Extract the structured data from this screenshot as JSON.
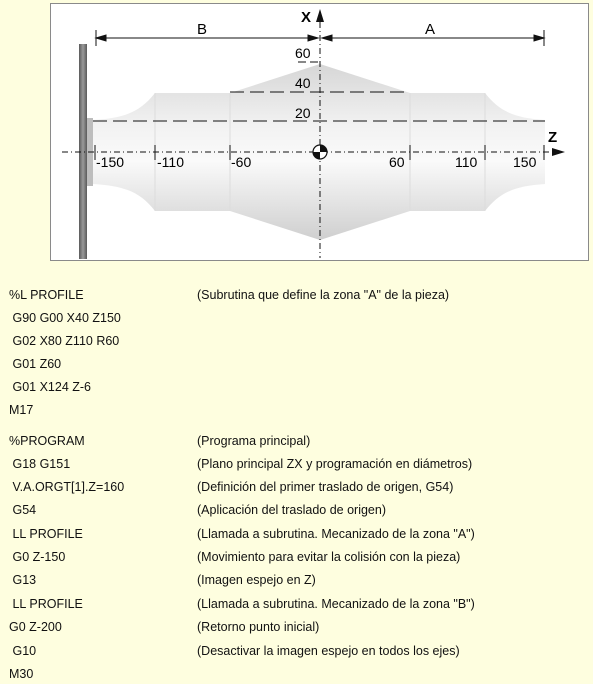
{
  "figure": {
    "zone_b_label": "B",
    "zone_a_label": "A",
    "x_axis_label": "X",
    "z_axis_label": "Z",
    "x_ticks": [
      "60",
      "40",
      "20"
    ],
    "z_ticks": [
      "-150",
      "-110",
      "-60",
      "60",
      "110",
      "150"
    ]
  },
  "program": {
    "lines": [
      {
        "code": "%L PROFILE",
        "comment": "(Subrutina que define la zona \"A\" de la pieza)"
      },
      {
        "code": " G90 G00 X40 Z150",
        "comment": ""
      },
      {
        "code": " G02 X80 Z110 R60",
        "comment": ""
      },
      {
        "code": " G01 Z60",
        "comment": ""
      },
      {
        "code": " G01 X124 Z-6",
        "comment": ""
      },
      {
        "code": "M17",
        "comment": ""
      },
      {
        "code": "%PROGRAM",
        "comment": "(Programa principal)"
      },
      {
        "code": " G18 G151",
        "comment": "(Plano principal ZX y programación en diámetros)"
      },
      {
        "code": " V.A.ORGT[1].Z=160",
        "comment": "(Definición del primer traslado de origen, G54)"
      },
      {
        "code": " G54",
        "comment": "(Aplicación del traslado de origen)"
      },
      {
        "code": " LL PROFILE",
        "comment": "(Llamada a subrutina. Mecanizado de la zona \"A\")"
      },
      {
        "code": " G0 Z-150",
        "comment": "(Movimiento para evitar la colisión con la pieza)"
      },
      {
        "code": " G13",
        "comment": "(Imagen espejo en Z)"
      },
      {
        "code": " LL PROFILE",
        "comment": "(Llamada a subrutina. Mecanizado de la zona \"B\")"
      },
      {
        "code": "G0 Z-200",
        "comment": "(Retorno punto inicial)"
      },
      {
        "code": " G10",
        "comment": "(Desactivar la imagen espejo en todos los ejes)"
      },
      {
        "code": "M30",
        "comment": ""
      }
    ]
  }
}
